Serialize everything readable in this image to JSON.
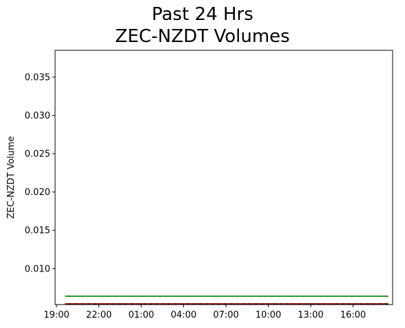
{
  "chart_data": {
    "type": "line",
    "title_line1": "Past 24 Hrs",
    "title_line2": "ZEC-NZDT Volumes",
    "xlabel": "",
    "ylabel": "ZEC-NZDT Volume",
    "ylim": [
      0.0053,
      0.0385
    ],
    "y_ticks": [
      0.01,
      0.015,
      0.02,
      0.025,
      0.03,
      0.035
    ],
    "y_tick_labels": [
      "0.010",
      "0.015",
      "0.020",
      "0.025",
      "0.030",
      "0.035"
    ],
    "x_range_hours": [
      18.9,
      42.8
    ],
    "x_ticks_hours": [
      19,
      22,
      25,
      28,
      31,
      34,
      37,
      40
    ],
    "x_tick_labels": [
      "19:00",
      "22:00",
      "01:00",
      "04:00",
      "07:00",
      "10:00",
      "13:00",
      "16:00"
    ],
    "grid": false,
    "series": [
      {
        "color": "#008000",
        "style": "solid",
        "x": [
          19.6,
          42.5
        ],
        "y": [
          0.0064,
          0.0064
        ]
      },
      {
        "color": "#000000",
        "style": "solid",
        "x": [
          19.6,
          42.5
        ],
        "y": [
          0.0054,
          0.0054
        ]
      },
      {
        "color": "#cc0000",
        "style": "dashed",
        "x": [
          19.6,
          42.5
        ],
        "y": [
          0.0054,
          0.0054
        ]
      }
    ]
  }
}
